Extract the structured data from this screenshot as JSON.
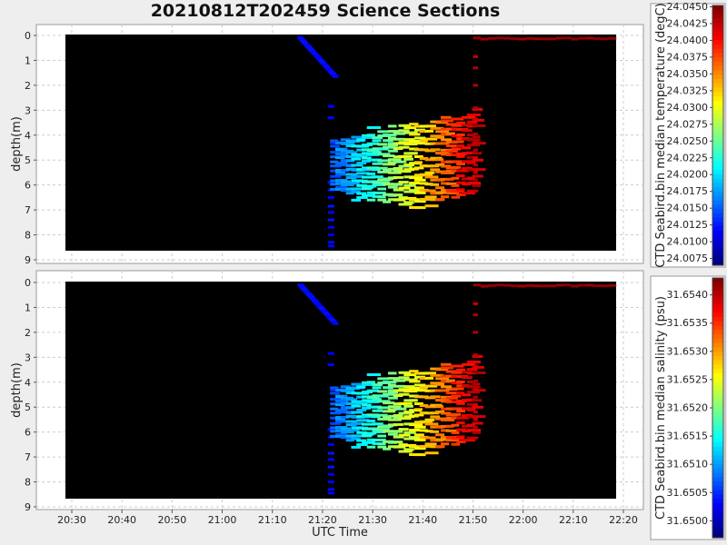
{
  "title": "20210812T202459 Science Sections",
  "chart_data": [
    {
      "type": "heatmap",
      "title": "20210812T202459 Science Sections",
      "xlabel": "UTC Time",
      "ylabel": "depth(m)",
      "x_ticks": [
        "20:30",
        "20:40",
        "20:50",
        "21:00",
        "21:10",
        "21:20",
        "21:30",
        "21:40",
        "21:50",
        "22:00",
        "22:10",
        "22:20"
      ],
      "x_range": [
        "20:26",
        "22:21"
      ],
      "y_ticks": [
        0,
        1,
        2,
        3,
        4,
        5,
        6,
        7,
        8,
        9
      ],
      "y_range": [
        0,
        9
      ],
      "y_inverted": true,
      "colorbar": {
        "label": "CTD Seabird.bin median temperature (degC)",
        "ticks": [
          "24.0075",
          "24.0100",
          "24.0125",
          "24.0150",
          "24.0175",
          "24.0200",
          "24.0225",
          "24.0250",
          "24.0275",
          "24.0300",
          "24.0325",
          "24.0350",
          "24.0375",
          "24.0400",
          "24.0425",
          "24.0450"
        ],
        "min": 24.0065,
        "max": 24.0452,
        "colormap": "jet"
      },
      "grid": true,
      "background": "#000000"
    },
    {
      "type": "heatmap",
      "xlabel": "UTC Time",
      "ylabel": "depth(m)",
      "x_ticks": [
        "20:30",
        "20:40",
        "20:50",
        "21:00",
        "21:10",
        "21:20",
        "21:30",
        "21:40",
        "21:50",
        "22:00",
        "22:10",
        "22:20"
      ],
      "x_range": [
        "20:26",
        "22:21"
      ],
      "y_ticks": [
        0,
        1,
        2,
        3,
        4,
        5,
        6,
        7,
        8,
        9
      ],
      "y_range": [
        0,
        9
      ],
      "y_inverted": true,
      "colorbar": {
        "label": "CTD Seabird.bin median salinity (psu)",
        "ticks": [
          "31.6500",
          "31.6505",
          "31.6510",
          "31.6515",
          "31.6520",
          "31.6525",
          "31.6530",
          "31.6535",
          "31.6540"
        ],
        "min": 31.6497,
        "max": 31.6543,
        "colormap": "jet"
      },
      "grid": true,
      "background": "#000000"
    }
  ]
}
